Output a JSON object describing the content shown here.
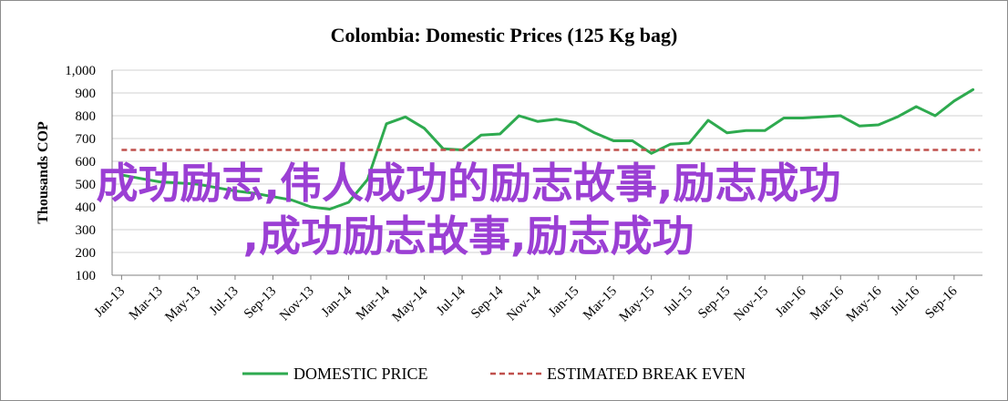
{
  "chart_data": {
    "type": "line",
    "title": "Colombia:  Domestic Prices (125 Kg bag)",
    "ylabel": "Thousands COP",
    "xlabel": "",
    "ylim": [
      100,
      1000
    ],
    "yticks": [
      100,
      200,
      300,
      400,
      500,
      600,
      700,
      800,
      900,
      1000
    ],
    "ytick_labels": [
      "100",
      "200",
      "300",
      "400",
      "500",
      "600",
      "700",
      "800",
      "900",
      "1,000"
    ],
    "xtick_labels": [
      "Jan-13",
      "Mar-13",
      "May-13",
      "Jul-13",
      "Sep-13",
      "Nov-13",
      "Jan-14",
      "Mar-14",
      "May-14",
      "Jul-14",
      "Sep-14",
      "Nov-14",
      "Jan-15",
      "Mar-15",
      "May-15",
      "Jul-15",
      "Sep-15",
      "Nov-15",
      "Jan-16",
      "Mar-16",
      "May-16",
      "Jul-16",
      "Sep-16"
    ],
    "grid": true,
    "legend_position": "bottom",
    "categories": [
      "Jan-13",
      "Feb-13",
      "Mar-13",
      "Apr-13",
      "May-13",
      "Jun-13",
      "Jul-13",
      "Aug-13",
      "Sep-13",
      "Oct-13",
      "Nov-13",
      "Dec-13",
      "Jan-14",
      "Feb-14",
      "Mar-14",
      "Apr-14",
      "May-14",
      "Jun-14",
      "Jul-14",
      "Aug-14",
      "Sep-14",
      "Oct-14",
      "Nov-14",
      "Dec-14",
      "Jan-15",
      "Feb-15",
      "Mar-15",
      "Apr-15",
      "May-15",
      "Jun-15",
      "Jul-15",
      "Aug-15",
      "Sep-15",
      "Oct-15",
      "Nov-15",
      "Dec-15",
      "Jan-16",
      "Feb-16",
      "Mar-16",
      "Apr-16",
      "May-16",
      "Jun-16",
      "Jul-16",
      "Aug-16",
      "Sep-16",
      "Oct-16"
    ],
    "series": [
      {
        "name": "DOMESTIC PRICE",
        "color": "#2eaa4f",
        "style": "solid",
        "values": [
          540,
          525,
          510,
          505,
          500,
          485,
          470,
          460,
          445,
          430,
          400,
          390,
          420,
          520,
          765,
          795,
          745,
          655,
          650,
          715,
          720,
          800,
          775,
          785,
          770,
          725,
          690,
          690,
          635,
          675,
          680,
          780,
          725,
          735,
          735,
          790,
          790,
          795,
          800,
          755,
          760,
          795,
          840,
          800,
          865,
          915
        ]
      },
      {
        "name": "ESTIMATED BREAK EVEN",
        "color": "#c0504d",
        "style": "dashed",
        "constant": 650
      }
    ]
  },
  "overlay": {
    "line1": "成功励志,伟人成功的励志故事,励志成功",
    "line2": ",成功励志故事,励志成功",
    "color": "#9b3fd4"
  }
}
